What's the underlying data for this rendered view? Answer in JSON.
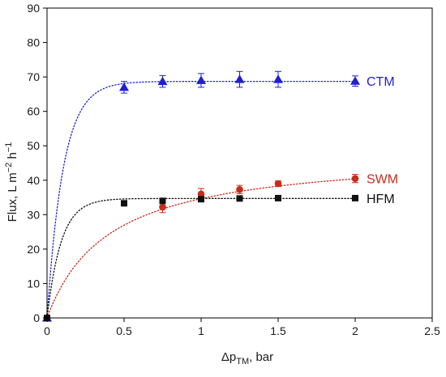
{
  "chart_data": {
    "type": "scatter",
    "xlabel": {
      "main": "Δp",
      "sub": "TM",
      "rest": ", bar"
    },
    "ylabel": {
      "pre": "Flux, L m",
      "sup1": "−2",
      "mid": " h",
      "sup2": "−1"
    },
    "xlim": [
      0,
      2.5
    ],
    "ylim": [
      0,
      90
    ],
    "xticks": [
      0,
      0.5,
      1,
      1.5,
      2,
      2.5
    ],
    "xtick_labels": [
      "0",
      "0.5",
      "1",
      "1.5",
      "2",
      "2.5"
    ],
    "yticks": [
      0,
      10,
      20,
      30,
      40,
      50,
      60,
      70,
      80,
      90
    ],
    "ytick_labels": [
      "0",
      "10",
      "20",
      "30",
      "40",
      "50",
      "60",
      "70",
      "80",
      "90"
    ],
    "grid": false,
    "series": [
      {
        "name": "CTM",
        "color": "#1f1fd6",
        "marker": "triangle",
        "x": [
          0,
          0.5,
          0.75,
          1,
          1.25,
          1.5,
          2
        ],
        "y": [
          0,
          67,
          68.7,
          69,
          69.3,
          69.3,
          68.8
        ],
        "yerr": [
          0,
          1.7,
          1.7,
          2,
          2.3,
          2.3,
          1.5
        ],
        "fit": {
          "model": "exp_saturation",
          "ymax": 68.7,
          "k": 9.5,
          "style": "dotted"
        }
      },
      {
        "name": "SWM",
        "color": "#cc2a1a",
        "marker": "circle",
        "x": [
          0,
          0.75,
          1,
          1.25,
          1.5,
          2
        ],
        "y": [
          0,
          32.2,
          36,
          37.3,
          39,
          40.5
        ],
        "yerr": [
          0,
          1.6,
          1.6,
          1.2,
          0.8,
          1.2
        ],
        "fit": {
          "model": "hyperbolic",
          "ymax": 48.5,
          "k": 0.4,
          "style": "dotted"
        }
      },
      {
        "name": "HFM",
        "color": "#111111",
        "marker": "square",
        "x": [
          0,
          0.5,
          0.75,
          1,
          1.25,
          1.5,
          2
        ],
        "y": [
          0,
          33.3,
          34,
          34.5,
          34.7,
          34.8,
          34.8
        ],
        "yerr": [
          0,
          0,
          0,
          0,
          0,
          0,
          0
        ],
        "fit": {
          "model": "exp_saturation",
          "ymax": 34.7,
          "k": 11,
          "style": "dotted"
        }
      }
    ]
  }
}
